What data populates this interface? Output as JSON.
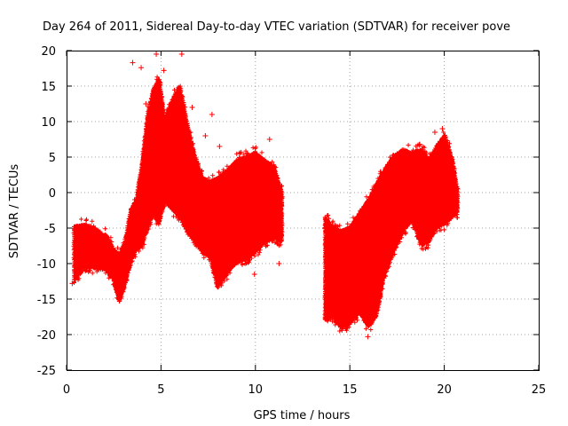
{
  "chart_data": {
    "type": "scatter",
    "title": "Day 264 of 2011, Sidereal Day-to-day VTEC variation (SDTVAR) for receiver pove",
    "xlabel": "GPS time / hours",
    "ylabel": "SDTVAR / TECUs",
    "xlim": [
      0,
      25
    ],
    "ylim": [
      -25,
      20
    ],
    "xticks": [
      0,
      5,
      10,
      15,
      20,
      25
    ],
    "yticks": [
      -25,
      -20,
      -15,
      -10,
      -5,
      0,
      5,
      10,
      15,
      20
    ],
    "xtick_labels": [
      "0",
      "5",
      "10",
      "15",
      "20",
      "25"
    ],
    "ytick_labels": [
      "-25",
      "-20",
      "-15",
      "-10",
      "-5",
      "0",
      "5",
      "10",
      "15",
      "20"
    ],
    "grid": true,
    "marker": "+",
    "color": "#ff0000",
    "series": [
      {
        "name": "SDTVAR",
        "envelope": [
          {
            "x": 0.4,
            "lo": -12.5,
            "hi": -4.8
          },
          {
            "x": 1.0,
            "lo": -10.5,
            "hi": -4.6
          },
          {
            "x": 1.6,
            "lo": -10.8,
            "hi": -5.2
          },
          {
            "x": 1.9,
            "lo": -10.5,
            "hi": -6.0
          },
          {
            "x": 2.1,
            "lo": -11.0,
            "hi": -6.0
          },
          {
            "x": 2.5,
            "lo": -12.5,
            "hi": -8.0
          },
          {
            "x": 2.8,
            "lo": -15.5,
            "hi": -9.0
          },
          {
            "x": 3.1,
            "lo": -13.0,
            "hi": -7.0
          },
          {
            "x": 3.4,
            "lo": -10.0,
            "hi": -2.5
          },
          {
            "x": 3.7,
            "lo": -8.0,
            "hi": -1.0
          },
          {
            "x": 4.0,
            "lo": -7.5,
            "hi": 4.0
          },
          {
            "x": 4.3,
            "lo": -5.0,
            "hi": 11.0
          },
          {
            "x": 4.6,
            "lo": -3.0,
            "hi": 14.5
          },
          {
            "x": 4.9,
            "lo": -4.5,
            "hi": 16.0
          },
          {
            "x": 5.2,
            "lo": -1.0,
            "hi": 10.0
          },
          {
            "x": 5.6,
            "lo": -2.5,
            "hi": 13.0
          },
          {
            "x": 6.0,
            "lo": -3.5,
            "hi": 15.0
          },
          {
            "x": 6.4,
            "lo": -5.5,
            "hi": 9.5
          },
          {
            "x": 6.8,
            "lo": -7.0,
            "hi": 5.0
          },
          {
            "x": 7.2,
            "lo": -8.5,
            "hi": 2.0
          },
          {
            "x": 7.6,
            "lo": -9.0,
            "hi": 1.5
          },
          {
            "x": 8.0,
            "lo": -13.5,
            "hi": 2.0
          },
          {
            "x": 8.5,
            "lo": -11.5,
            "hi": 3.0
          },
          {
            "x": 9.0,
            "lo": -10.0,
            "hi": 4.5
          },
          {
            "x": 9.5,
            "lo": -9.5,
            "hi": 5.0
          },
          {
            "x": 10.0,
            "lo": -8.5,
            "hi": 5.5
          },
          {
            "x": 10.5,
            "lo": -7.0,
            "hi": 4.5
          },
          {
            "x": 11.0,
            "lo": -6.5,
            "hi": 3.5
          },
          {
            "x": 11.4,
            "lo": -7.0,
            "hi": 0.0
          },
          {
            "x": 13.7,
            "lo": -18.0,
            "hi": -3.5
          },
          {
            "x": 14.1,
            "lo": -17.5,
            "hi": -5.0
          },
          {
            "x": 14.5,
            "lo": -19.0,
            "hi": -5.5
          },
          {
            "x": 15.0,
            "lo": -18.5,
            "hi": -5.0
          },
          {
            "x": 15.5,
            "lo": -17.0,
            "hi": -3.0
          },
          {
            "x": 16.0,
            "lo": -19.0,
            "hi": -1.0
          },
          {
            "x": 16.4,
            "lo": -17.5,
            "hi": 1.0
          },
          {
            "x": 16.8,
            "lo": -12.0,
            "hi": 3.0
          },
          {
            "x": 17.3,
            "lo": -8.5,
            "hi": 5.0
          },
          {
            "x": 17.8,
            "lo": -5.5,
            "hi": 6.0
          },
          {
            "x": 18.3,
            "lo": -4.0,
            "hi": 5.5
          },
          {
            "x": 18.8,
            "lo": -7.5,
            "hi": 6.0
          },
          {
            "x": 19.2,
            "lo": -7.0,
            "hi": 4.5
          },
          {
            "x": 19.6,
            "lo": -5.0,
            "hi": 6.5
          },
          {
            "x": 20.0,
            "lo": -4.5,
            "hi": 8.0
          },
          {
            "x": 20.4,
            "lo": -3.5,
            "hi": 5.0
          },
          {
            "x": 20.7,
            "lo": -3.0,
            "hi": 0.5
          }
        ],
        "outliers": [
          [
            3.5,
            18.3
          ],
          [
            3.95,
            17.6
          ],
          [
            4.75,
            19.5
          ],
          [
            5.15,
            17.2
          ],
          [
            6.1,
            19.5
          ],
          [
            4.2,
            12.5
          ],
          [
            6.65,
            12.0
          ],
          [
            7.7,
            11.0
          ],
          [
            7.35,
            8.0
          ],
          [
            8.1,
            6.5
          ],
          [
            9.1,
            -9.0
          ],
          [
            9.95,
            -11.5
          ],
          [
            11.25,
            -10.0
          ],
          [
            10.75,
            7.5
          ],
          [
            14.0,
            -5.5
          ],
          [
            14.6,
            -18.5
          ],
          [
            15.95,
            -20.3
          ],
          [
            19.5,
            8.5
          ],
          [
            19.9,
            9.0
          ],
          [
            18.7,
            6.8
          ],
          [
            0.3,
            -12.8
          ]
        ]
      }
    ]
  }
}
